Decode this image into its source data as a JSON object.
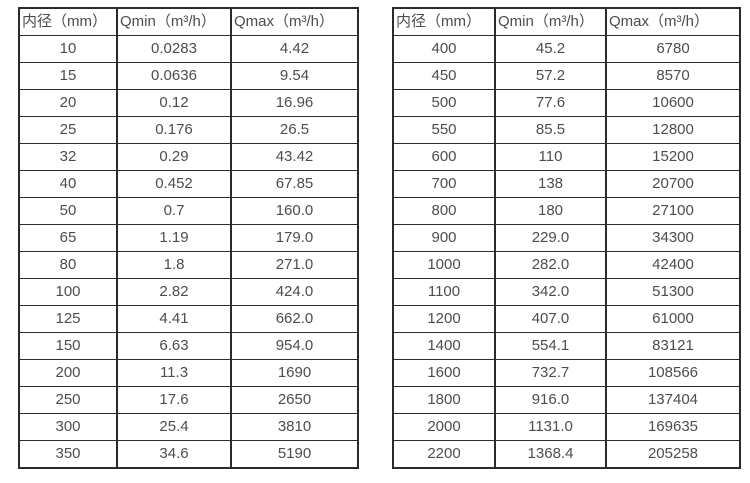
{
  "colors": {
    "border": "#2b2b2b",
    "text": "#4d4d4d",
    "background": "#ffffff"
  },
  "chart_data": [
    {
      "type": "table",
      "title": "",
      "columns": [
        "内径（mm）",
        "Qmin（m³/h）",
        "Qmax（m³/h）"
      ],
      "rows": [
        [
          "10",
          "0.0283",
          "4.42"
        ],
        [
          "15",
          "0.0636",
          "9.54"
        ],
        [
          "20",
          "0.12",
          "16.96"
        ],
        [
          "25",
          "0.176",
          "26.5"
        ],
        [
          "32",
          "0.29",
          "43.42"
        ],
        [
          "40",
          "0.452",
          "67.85"
        ],
        [
          "50",
          "0.7",
          "160.0"
        ],
        [
          "65",
          "1.19",
          "179.0"
        ],
        [
          "80",
          "1.8",
          "271.0"
        ],
        [
          "100",
          "2.82",
          "424.0"
        ],
        [
          "125",
          "4.41",
          "662.0"
        ],
        [
          "150",
          "6.63",
          "954.0"
        ],
        [
          "200",
          "11.3",
          "1690"
        ],
        [
          "250",
          "17.6",
          "2650"
        ],
        [
          "300",
          "25.4",
          "3810"
        ],
        [
          "350",
          "34.6",
          "5190"
        ]
      ]
    },
    {
      "type": "table",
      "title": "",
      "columns": [
        "内径（mm）",
        "Qmin（m³/h）",
        "Qmax（m³/h）"
      ],
      "rows": [
        [
          "400",
          "45.2",
          "6780"
        ],
        [
          "450",
          "57.2",
          "8570"
        ],
        [
          "500",
          "77.6",
          "10600"
        ],
        [
          "550",
          "85.5",
          "12800"
        ],
        [
          "600",
          "110",
          "15200"
        ],
        [
          "700",
          "138",
          "20700"
        ],
        [
          "800",
          "180",
          "27100"
        ],
        [
          "900",
          "229.0",
          "34300"
        ],
        [
          "1000",
          "282.0",
          "42400"
        ],
        [
          "1100",
          "342.0",
          "51300"
        ],
        [
          "1200",
          "407.0",
          "61000"
        ],
        [
          "1400",
          "554.1",
          "83121"
        ],
        [
          "1600",
          "732.7",
          "108566"
        ],
        [
          "1800",
          "916.0",
          "137404"
        ],
        [
          "2000",
          "1131.0",
          "169635"
        ],
        [
          "2200",
          "1368.4",
          "205258"
        ]
      ]
    }
  ]
}
